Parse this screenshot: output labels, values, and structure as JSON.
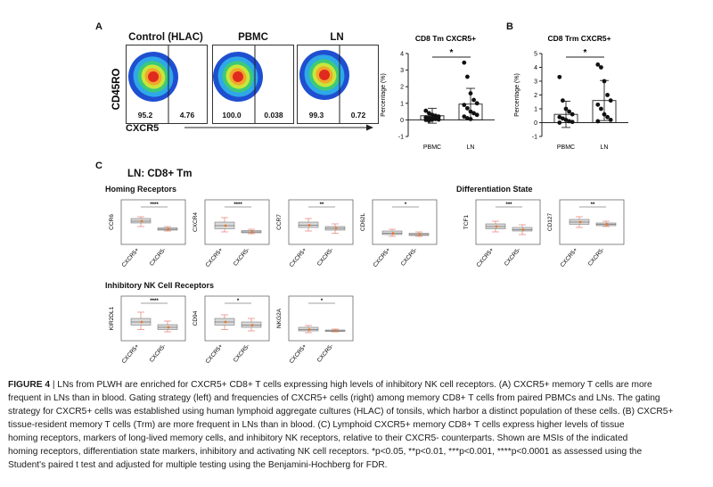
{
  "panelA": {
    "letter": "A",
    "flow": {
      "ylabel": "CD45RO",
      "xlabel": "CXCR5",
      "plots": [
        {
          "title": "Control (HLAC)",
          "left": "95.2",
          "right": "4.76"
        },
        {
          "title": "PBMC",
          "left": "100.0",
          "right": "0.038"
        },
        {
          "title": "LN",
          "left": "99.3",
          "right": "0.72"
        }
      ]
    }
  },
  "panelB": {
    "letter": "B"
  },
  "panelC": {
    "letter": "C",
    "title": "LN: CD8+ Tm",
    "homing": "Homing Receptors",
    "differentiation": "Differentiation State",
    "inhibitory": "Inhibitory NK Cell Receptors"
  },
  "chart_data": [
    {
      "type": "scatter",
      "title": "CD8 Tm CXCR5+",
      "ylabel": "Percentage (%)",
      "categories": [
        "PBMC",
        "LN"
      ],
      "ylim": [
        -1,
        4
      ],
      "yticks": [
        "-1",
        "0",
        "1",
        "2",
        "3",
        "4"
      ],
      "significance": "*",
      "series": [
        {
          "name": "PBMC",
          "mean": 0.25,
          "sd": 0.45,
          "points": [
            0.55,
            0.4,
            0.3,
            0.25,
            0.2,
            0.15,
            0.12,
            0.1,
            0.05,
            0.02,
            0.0,
            -0.05,
            0.02
          ]
        },
        {
          "name": "LN",
          "mean": 0.95,
          "sd": 0.95,
          "points": [
            3.45,
            2.6,
            1.6,
            1.2,
            1.0,
            0.9,
            0.7,
            0.5,
            0.4,
            0.3,
            0.2,
            0.1,
            0.05
          ]
        }
      ]
    },
    {
      "type": "scatter",
      "title": "CD8 Trm CXCR5+",
      "ylabel": "Percentage (%)",
      "categories": [
        "PBMC",
        "LN"
      ],
      "ylim": [
        -1,
        5
      ],
      "yticks": [
        "-1",
        "0",
        "1",
        "2",
        "3",
        "4",
        "5"
      ],
      "significance": "*",
      "series": [
        {
          "name": "PBMC",
          "mean": 0.6,
          "sd": 0.95,
          "points": [
            3.3,
            1.6,
            1.0,
            0.8,
            0.6,
            0.4,
            0.3,
            0.2,
            0.1,
            0.05,
            0.0
          ]
        },
        {
          "name": "LN",
          "mean": 1.6,
          "sd": 1.45,
          "points": [
            4.2,
            4.0,
            3.0,
            2.0,
            1.6,
            1.3,
            1.0,
            0.6,
            0.4,
            0.2,
            0.1
          ]
        }
      ]
    },
    {
      "type": "box",
      "group": "Homing Receptors",
      "ylabel": "CCR6",
      "categories": [
        "CXCR5+",
        "CXCR5-"
      ],
      "significance": "****",
      "boxes": [
        {
          "q1": 0.48,
          "med": 0.52,
          "q3": 0.58,
          "lo": 0.4,
          "hi": 0.62
        },
        {
          "q1": 0.32,
          "med": 0.34,
          "q3": 0.37,
          "lo": 0.3,
          "hi": 0.4
        }
      ]
    },
    {
      "type": "box",
      "group": "Homing Receptors",
      "ylabel": "CXCR4",
      "categories": [
        "CXCR5+",
        "CXCR5-"
      ],
      "significance": "****",
      "boxes": [
        {
          "q1": 0.35,
          "med": 0.42,
          "q3": 0.5,
          "lo": 0.28,
          "hi": 0.6
        },
        {
          "q1": 0.26,
          "med": 0.28,
          "q3": 0.31,
          "lo": 0.24,
          "hi": 0.34
        }
      ]
    },
    {
      "type": "box",
      "group": "Homing Receptors",
      "ylabel": "CCR7",
      "categories": [
        "CXCR5+",
        "CXCR5-"
      ],
      "significance": "**",
      "boxes": [
        {
          "q1": 0.38,
          "med": 0.43,
          "q3": 0.5,
          "lo": 0.3,
          "hi": 0.58
        },
        {
          "q1": 0.32,
          "med": 0.36,
          "q3": 0.4,
          "lo": 0.25,
          "hi": 0.46
        }
      ]
    },
    {
      "type": "box",
      "group": "Homing Receptors",
      "ylabel": "CD62L",
      "categories": [
        "CXCR5+",
        "CXCR5-"
      ],
      "significance": "*",
      "boxes": [
        {
          "q1": 0.22,
          "med": 0.25,
          "q3": 0.3,
          "lo": 0.18,
          "hi": 0.34
        },
        {
          "q1": 0.2,
          "med": 0.22,
          "q3": 0.25,
          "lo": 0.18,
          "hi": 0.28
        }
      ]
    },
    {
      "type": "box",
      "group": "Differentiation State",
      "ylabel": "TCF1",
      "categories": [
        "CXCR5+",
        "CXCR5-"
      ],
      "significance": "***",
      "boxes": [
        {
          "q1": 0.35,
          "med": 0.4,
          "q3": 0.46,
          "lo": 0.28,
          "hi": 0.52
        },
        {
          "q1": 0.3,
          "med": 0.33,
          "q3": 0.38,
          "lo": 0.22,
          "hi": 0.44
        }
      ]
    },
    {
      "type": "box",
      "group": "Differentiation State",
      "ylabel": "CD127",
      "categories": [
        "CXCR5+",
        "CXCR5-"
      ],
      "significance": "**",
      "boxes": [
        {
          "q1": 0.45,
          "med": 0.5,
          "q3": 0.56,
          "lo": 0.38,
          "hi": 0.62
        },
        {
          "q1": 0.42,
          "med": 0.45,
          "q3": 0.48,
          "lo": 0.4,
          "hi": 0.52
        }
      ]
    },
    {
      "type": "box",
      "group": "Inhibitory NK Cell Receptors",
      "ylabel": "KIR2DL1",
      "categories": [
        "CXCR5+",
        "CXCR5-"
      ],
      "significance": "****",
      "boxes": [
        {
          "q1": 0.35,
          "med": 0.42,
          "q3": 0.5,
          "lo": 0.25,
          "hi": 0.64
        },
        {
          "q1": 0.25,
          "med": 0.3,
          "q3": 0.36,
          "lo": 0.2,
          "hi": 0.44
        }
      ]
    },
    {
      "type": "box",
      "group": "Inhibitory NK Cell Receptors",
      "ylabel": "CD94",
      "categories": [
        "CXCR5+",
        "CXCR5-"
      ],
      "significance": "*",
      "boxes": [
        {
          "q1": 0.35,
          "med": 0.42,
          "q3": 0.5,
          "lo": 0.25,
          "hi": 0.58
        },
        {
          "q1": 0.3,
          "med": 0.35,
          "q3": 0.42,
          "lo": 0.22,
          "hi": 0.5
        }
      ]
    },
    {
      "type": "box",
      "group": "Inhibitory NK Cell Receptors",
      "ylabel": "NKG2A",
      "categories": [
        "CXCR5+",
        "CXCR5-"
      ],
      "significance": "*",
      "boxes": [
        {
          "q1": 0.22,
          "med": 0.25,
          "q3": 0.3,
          "lo": 0.18,
          "hi": 0.34
        },
        {
          "q1": 0.21,
          "med": 0.22,
          "q3": 0.24,
          "lo": 0.2,
          "hi": 0.26
        }
      ]
    }
  ],
  "caption": {
    "label": "FIGURE 4",
    "sep": " | ",
    "lines": [
      "LNs from PLWH are enriched for CXCR5+ CD8+ T cells expressing high levels of inhibitory NK cell receptors. (A) CXCR5+ memory T cells are more",
      "frequent in LNs than in blood. Gating strategy (left) and frequencies of CXCR5+ cells (right) among memory CD8+ T cells from paired PBMCs and LNs. The gating",
      "strategy for CXCR5+ cells was established using human lymphoid aggregate cultures (HLAC) of tonsils, which harbor a distinct population of these cells. (B) CXCR5+",
      "tissue-resident memory T cells (Trm) are more frequent in LNs than in blood. (C) Lymphoid CXCR5+ memory CD8+ T cells express higher levels of tissue",
      "homing receptors, markers of long-lived memory cells, and inhibitory NK receptors, relative to their CXCR5- counterparts. Shown are MSIs of the indicated",
      "homing receptors, differentiation state markers, inhibitory and activating NK cell receptors. *p<0.05, **p<0.01, ***p<0.001, ****p<0.0001 as assessed using the",
      "Student's paired t test and adjusted for multiple testing using the Benjamini-Hochberg for FDR."
    ]
  }
}
